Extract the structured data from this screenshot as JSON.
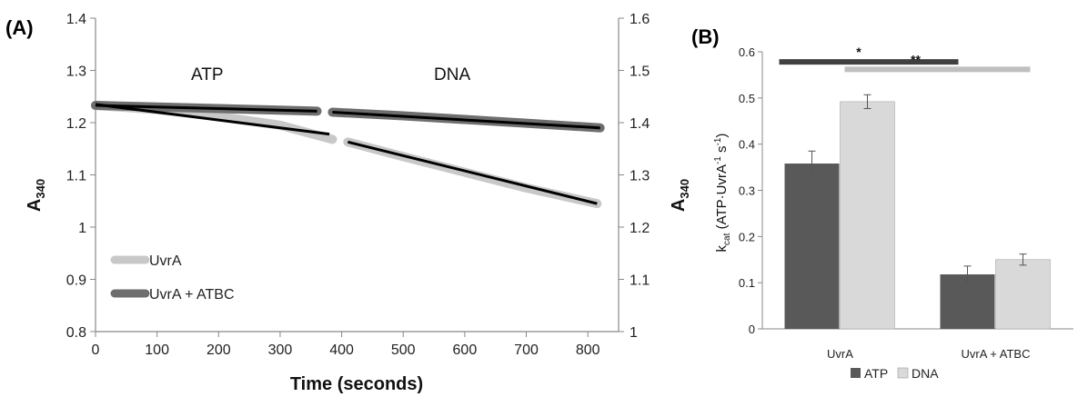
{
  "panel_labels": {
    "a": "(A)",
    "b": "(B)"
  },
  "colors": {
    "uvra": "#c8c8c8",
    "uvra_atbc": "#6e6e6e",
    "fit_line": "#000000",
    "bar_atp": "#595959",
    "bar_dna": "#d9d9d9",
    "sig1": "#404040",
    "sig2": "#bfbfbf"
  },
  "chart_data": [
    {
      "type": "line",
      "panel": "(A)",
      "xlabel": "Time (seconds)",
      "ylabel_left": "A340",
      "ylabel_right": "A340",
      "xlim": [
        0,
        850
      ],
      "ylim_left": [
        0.8,
        1.4
      ],
      "ylim_right": [
        1.0,
        1.6
      ],
      "x_ticks": [
        "0",
        "100",
        "200",
        "300",
        "400",
        "500",
        "600",
        "700",
        "800"
      ],
      "y_ticks_left": [
        "0.8",
        "0.9",
        "1",
        "1.1",
        "1.2",
        "1.3",
        "1.4"
      ],
      "y_ticks_right": [
        "1",
        "1.1",
        "1.2",
        "1.3",
        "1.4",
        "1.5",
        "1.6"
      ],
      "annotations": [
        "ATP",
        "DNA"
      ],
      "legend": [
        "UvrA",
        "UvrA + ATBC"
      ],
      "legend_position": "bottom-left",
      "series": [
        {
          "name": "UvrA",
          "color": "#c8c8c8",
          "segments": [
            {
              "x": [
                0,
                100,
                200,
                300,
                385
              ],
              "y": [
                1.233,
                1.225,
                1.212,
                1.195,
                1.168
              ]
            },
            {
              "x": [
                410,
                500,
                600,
                700,
                815
              ],
              "y": [
                1.163,
                1.135,
                1.105,
                1.075,
                1.045
              ]
            }
          ],
          "fits": [
            {
              "x": [
                0,
                380
              ],
              "y": [
                1.235,
                1.178
              ]
            },
            {
              "x": [
                410,
                815
              ],
              "y": [
                1.163,
                1.045
              ]
            }
          ]
        },
        {
          "name": "UvrA + ATBC",
          "color": "#6e6e6e",
          "segments": [
            {
              "x": [
                0,
                100,
                200,
                300,
                360
              ],
              "y": [
                1.233,
                1.23,
                1.227,
                1.224,
                1.222
              ]
            },
            {
              "x": [
                385,
                500,
                600,
                700,
                820
              ],
              "y": [
                1.22,
                1.213,
                1.206,
                1.199,
                1.19
              ]
            }
          ],
          "fits": [
            {
              "x": [
                0,
                360
              ],
              "y": [
                1.233,
                1.222
              ]
            },
            {
              "x": [
                385,
                820
              ],
              "y": [
                1.22,
                1.19
              ]
            }
          ]
        }
      ]
    },
    {
      "type": "bar",
      "panel": "(B)",
      "categories": [
        "UvrA",
        "UvrA + ATBC"
      ],
      "ylabel": "kcat (ATP·UvrA-1 s-1)",
      "ylabel_parts": {
        "k": "k",
        "cat": "cat",
        "mid": " (ATP·UvrA",
        "e1": "-1",
        "sp": " s",
        "e2": "-1",
        "end": ")"
      },
      "ylim": [
        0,
        0.6
      ],
      "y_ticks": [
        "0",
        "0.1",
        "0.2",
        "0.3",
        "0.4",
        "0.5",
        "0.6"
      ],
      "legend_position": "bottom",
      "series": [
        {
          "name": "ATP",
          "color": "#595959",
          "values": [
            0.358,
            0.118
          ],
          "errors": [
            0.027,
            0.018
          ]
        },
        {
          "name": "DNA",
          "color": "#d9d9d9",
          "values": [
            0.492,
            0.15
          ],
          "errors": [
            0.015,
            0.012
          ]
        }
      ],
      "significance": [
        {
          "label": "*",
          "color": "#404040",
          "from": "UvrA · ATP",
          "to": "UvrA + ATBC · ATP"
        },
        {
          "label": "**",
          "color": "#bfbfbf",
          "from": "UvrA · DNA",
          "to": "UvrA + ATBC · DNA"
        }
      ]
    }
  ]
}
